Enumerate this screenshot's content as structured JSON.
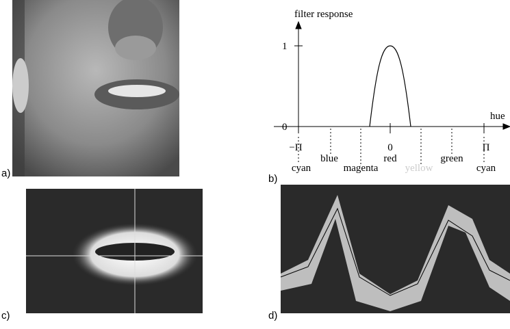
{
  "panels": {
    "a": {
      "label": "a)"
    },
    "b": {
      "label": "b)",
      "y_axis_label": "filter response",
      "y_tick_top": "1",
      "y_tick_zero": "0",
      "x_axis_label": "hue",
      "x_ticks": [
        "−Π",
        "0",
        "Π"
      ],
      "hue_names": [
        "cyan",
        "blue",
        "magenta",
        "red",
        "yellow",
        "green",
        "cyan"
      ]
    },
    "c": {
      "label": "c)"
    },
    "d": {
      "label": "d)"
    }
  }
}
